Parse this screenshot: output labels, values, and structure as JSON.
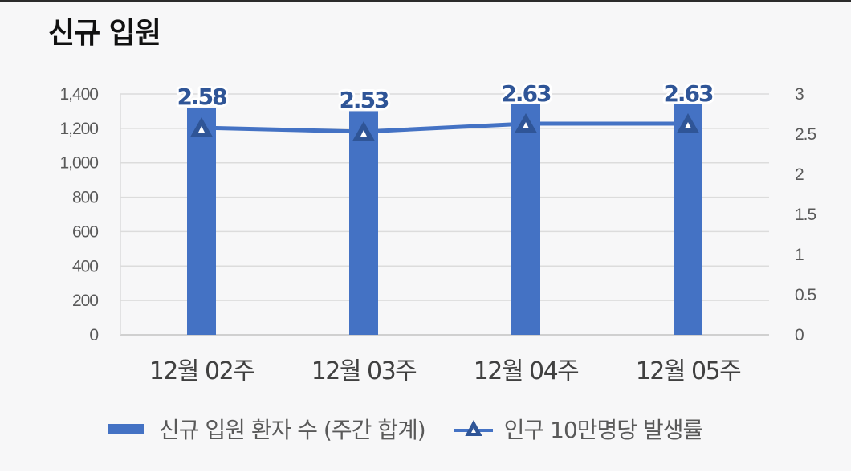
{
  "title": "신규 입원",
  "chart_data": {
    "type": "bar",
    "title": "신규 입원",
    "categories": [
      "12월 02주",
      "12월 03주",
      "12월 04주",
      "12월 05주"
    ],
    "series": [
      {
        "name": "신규 입원 환자 수 (주간 합계)",
        "type": "bar",
        "axis": "left",
        "values": [
          1320,
          1300,
          1340,
          1340
        ],
        "color": "#4472c4"
      },
      {
        "name": "인구 10만명당 발생률",
        "type": "line",
        "axis": "right",
        "values": [
          2.58,
          2.53,
          2.63,
          2.63
        ],
        "labels": [
          "2.58",
          "2.53",
          "2.63",
          "2.63"
        ],
        "color": "#4472c4",
        "marker": "triangle"
      }
    ],
    "y_left": {
      "ylim": [
        0,
        1400
      ],
      "ticks": [
        0,
        200,
        400,
        600,
        800,
        1000,
        1200,
        1400
      ],
      "tick_labels": [
        "0",
        "200",
        "400",
        "600",
        "800",
        "1,000",
        "1,200",
        "1,400"
      ]
    },
    "y_right": {
      "ylim": [
        0,
        3
      ],
      "ticks": [
        0,
        0.5,
        1,
        1.5,
        2,
        2.5,
        3
      ],
      "tick_labels": [
        "0",
        "0.5",
        "1",
        "1.5",
        "2",
        "2.5",
        "3"
      ]
    },
    "grid": true,
    "legend_position": "bottom"
  }
}
